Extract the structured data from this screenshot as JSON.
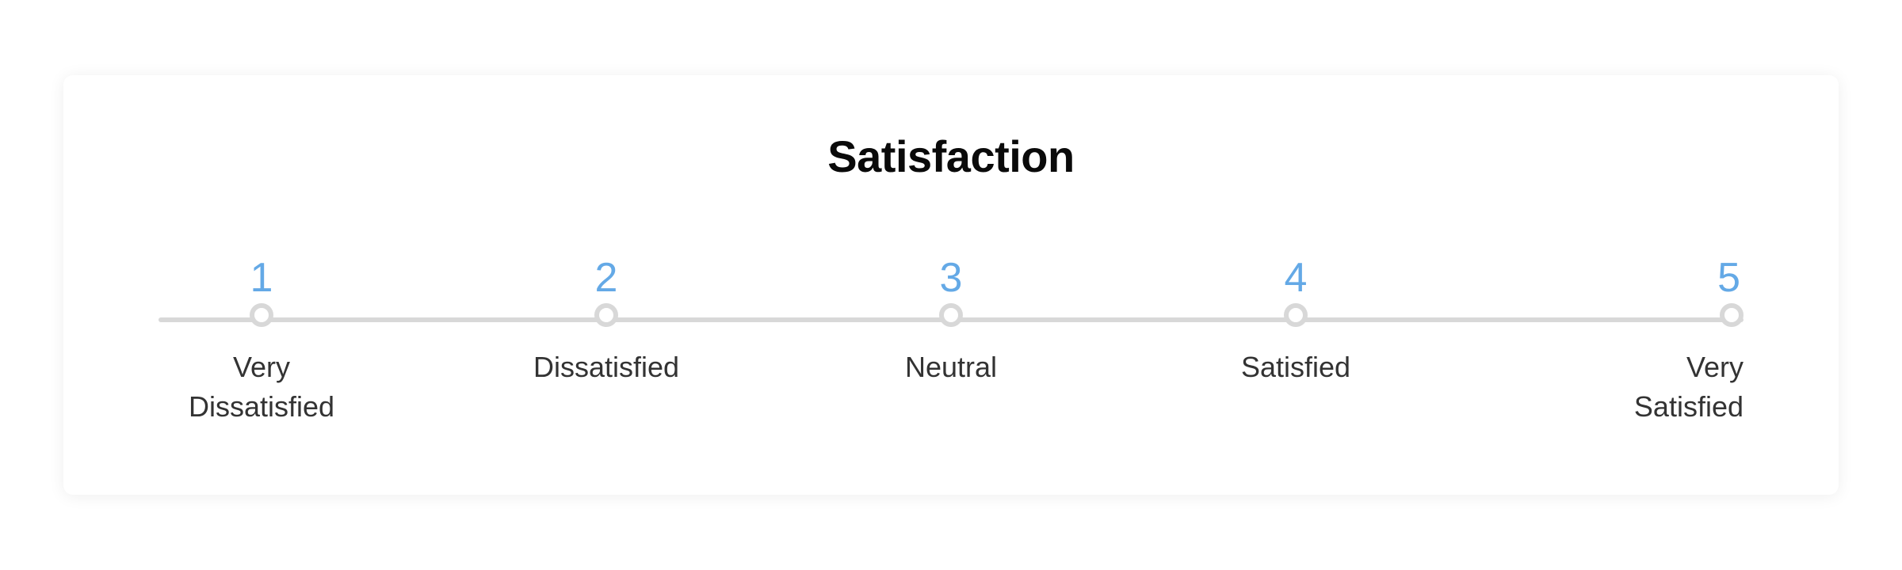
{
  "card": {
    "title": "Satisfaction",
    "title_fontsize": 56,
    "title_color": "#0a0a0a",
    "background_color": "#ffffff",
    "border_radius": 12
  },
  "scale": {
    "type": "likert",
    "track_color": "#d8d8d8",
    "dot_border_color": "#d8d8d8",
    "dot_fill_color": "#ffffff",
    "number_color": "#64a9e6",
    "number_fontsize": 52,
    "label_color": "#333333",
    "label_fontsize": 36,
    "options": [
      {
        "value": "1",
        "label": "Very\nDissatisfied"
      },
      {
        "value": "2",
        "label": "Dissatisfied"
      },
      {
        "value": "3",
        "label": "Neutral"
      },
      {
        "value": "4",
        "label": "Satisfied"
      },
      {
        "value": "5",
        "label": "Very\nSatisfied"
      }
    ]
  }
}
